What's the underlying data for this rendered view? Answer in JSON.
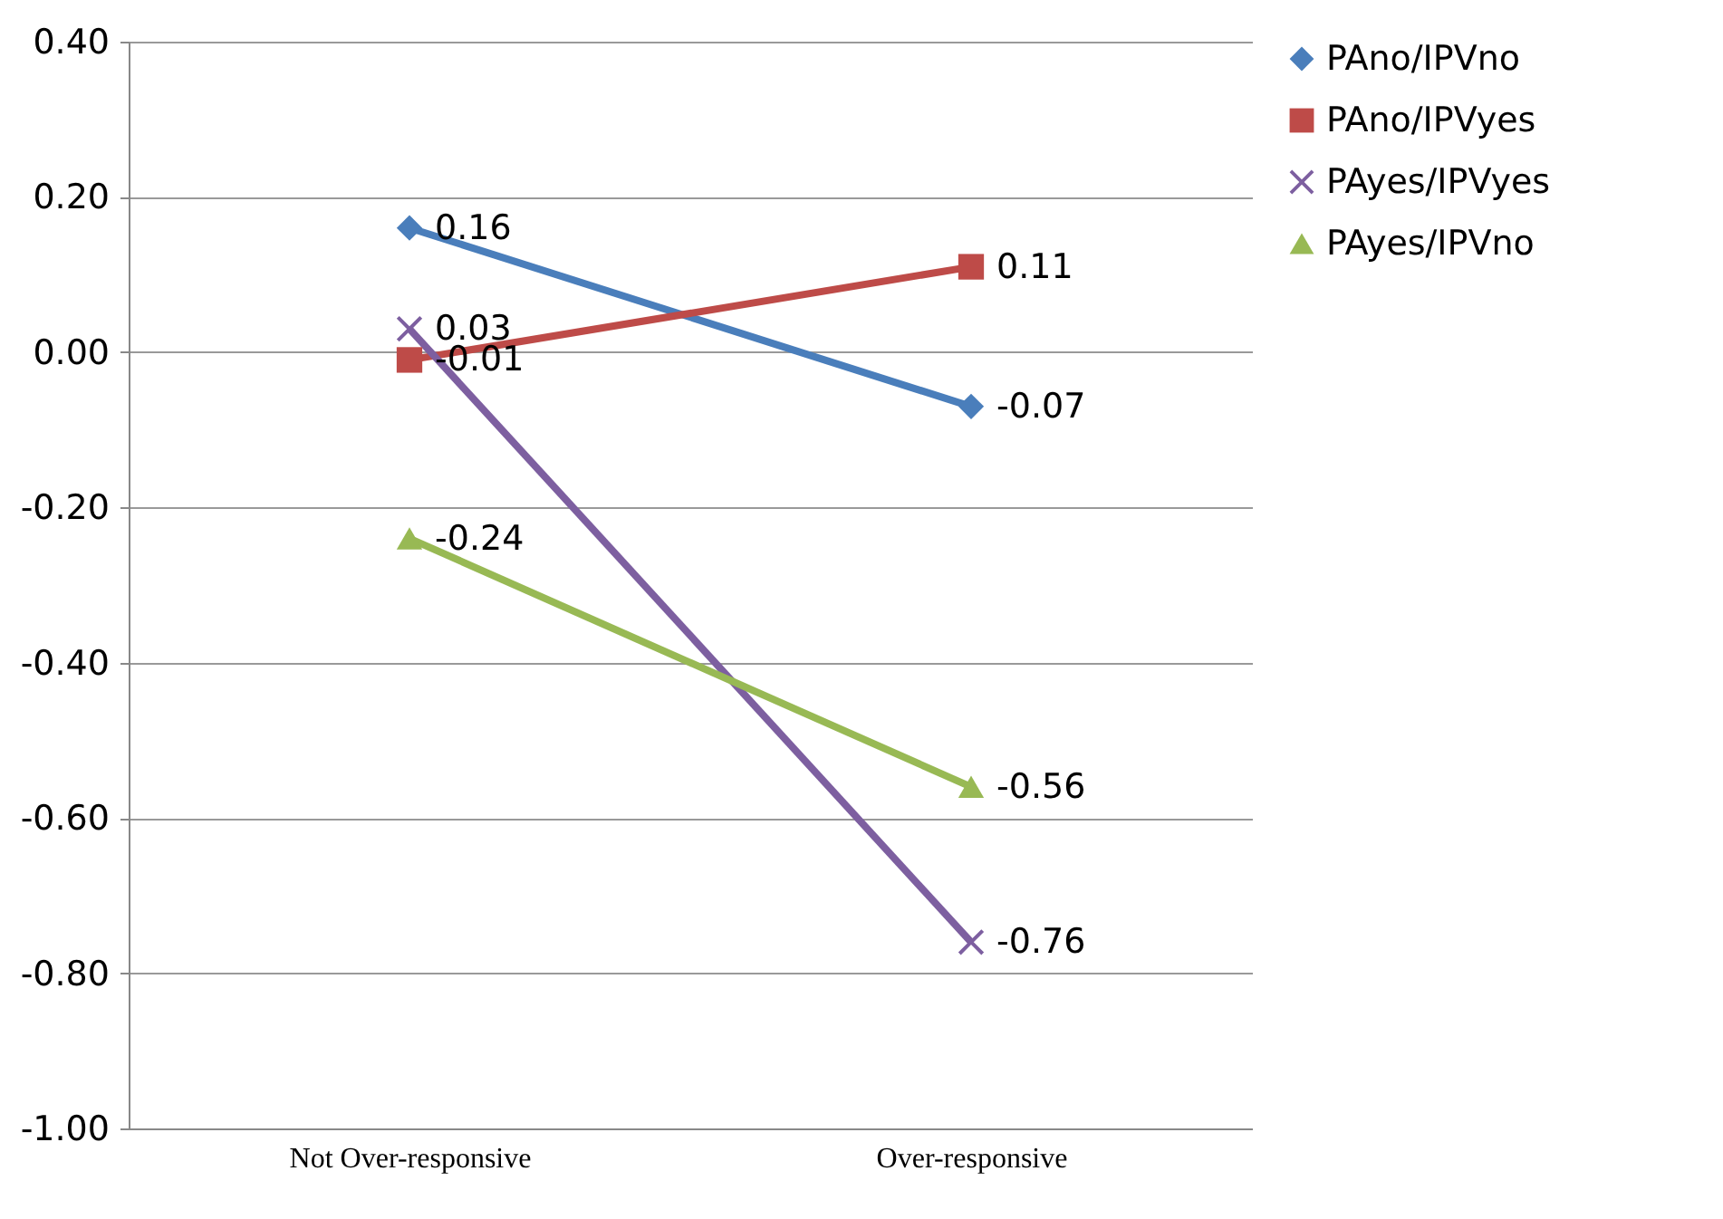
{
  "chart_data": {
    "type": "line",
    "categories": [
      "Not Over-responsive",
      "Over-responsive"
    ],
    "series": [
      {
        "name": "PAno/IPVno",
        "color": "#4a7ebb",
        "marker": "diamond",
        "values": [
          0.16,
          -0.07
        ]
      },
      {
        "name": "PAno/IPVyes",
        "color": "#be4b48",
        "marker": "square",
        "values": [
          -0.01,
          0.11
        ]
      },
      {
        "name": "PAyes/IPVyes",
        "color": "#7d5fa0",
        "marker": "cross",
        "values": [
          0.03,
          -0.76
        ]
      },
      {
        "name": "PAyes/IPVno",
        "color": "#98b954",
        "marker": "triangle",
        "values": [
          -0.24,
          -0.56
        ]
      }
    ],
    "ylim": [
      -1,
      0.4
    ],
    "yticks": [
      {
        "value": -1,
        "label": "-1.00"
      },
      {
        "value": -0.8,
        "label": "-0.80"
      },
      {
        "value": -0.6,
        "label": "-0.60"
      },
      {
        "value": -0.4,
        "label": "-0.40"
      },
      {
        "value": -0.2,
        "label": "-0.20"
      },
      {
        "value": 0,
        "label": "0.00"
      },
      {
        "value": 0.2,
        "label": "0.20"
      },
      {
        "value": 0.4,
        "label": "0.40"
      }
    ],
    "grid": "y",
    "legend": "right",
    "data_labels": true,
    "line_style": "solid"
  }
}
